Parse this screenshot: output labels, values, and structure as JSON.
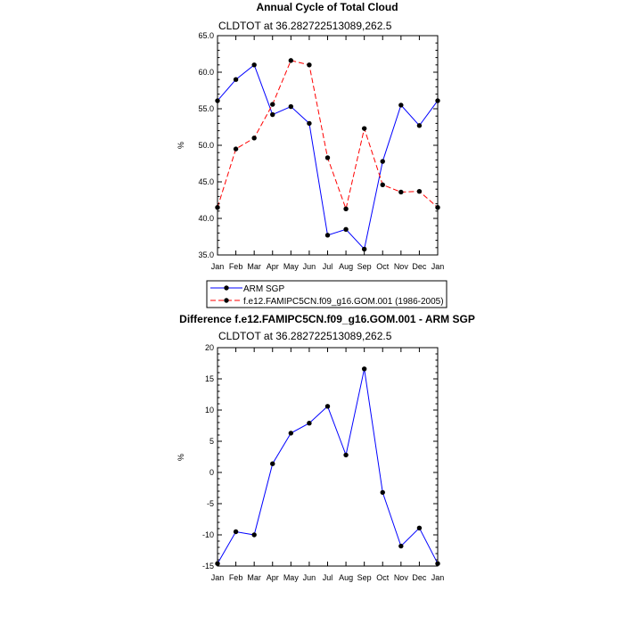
{
  "chart_data": [
    {
      "type": "line",
      "title": "Annual Cycle of Total Cloud",
      "subtitle": "CLDTOT at 36.282722513089,262.5",
      "xlabel": "",
      "ylabel": "%",
      "categories": [
        "Jan",
        "Feb",
        "Mar",
        "Apr",
        "May",
        "Jun",
        "Jul",
        "Aug",
        "Sep",
        "Oct",
        "Nov",
        "Dec",
        "Jan"
      ],
      "ylim": [
        35,
        65
      ],
      "yticks": [
        35,
        40,
        45,
        50,
        55,
        60,
        65
      ],
      "ytick_labels": [
        "35.0",
        "40.0",
        "45.0",
        "50.0",
        "55.0",
        "60.0",
        "65.0"
      ],
      "grid": false,
      "series": [
        {
          "name": "ARM SGP",
          "color": "#0000ff",
          "dash": "solid",
          "values": [
            56.1,
            59.0,
            61.0,
            54.2,
            55.3,
            53.0,
            37.7,
            38.5,
            35.8,
            47.8,
            55.5,
            52.7,
            56.1
          ]
        },
        {
          "name": "f.e12.FAMIPC5CN.f09_g16.GOM.001 (1986-2005)",
          "color": "#ff0000",
          "dash": "dashed",
          "values": [
            41.5,
            49.5,
            51.0,
            55.6,
            61.6,
            61.0,
            48.3,
            41.3,
            52.3,
            44.6,
            43.6,
            43.7,
            41.5
          ]
        }
      ],
      "legend": {
        "position": "below",
        "entries": [
          "ARM SGP",
          "f.e12.FAMIPC5CN.f09_g16.GOM.001 (1986-2005)"
        ]
      }
    },
    {
      "type": "line",
      "title": "Difference f.e12.FAMIPC5CN.f09_g16.GOM.001 - ARM SGP",
      "subtitle": "CLDTOT at 36.282722513089,262.5",
      "xlabel": "",
      "ylabel": "%",
      "categories": [
        "Jan",
        "Feb",
        "Mar",
        "Apr",
        "May",
        "Jun",
        "Jul",
        "Aug",
        "Sep",
        "Oct",
        "Nov",
        "Dec",
        "Jan"
      ],
      "ylim": [
        -15,
        20
      ],
      "yticks": [
        -15,
        -10,
        -5,
        0,
        5,
        10,
        15,
        20
      ],
      "ytick_labels": [
        "-15",
        "-10",
        "-5",
        "0",
        "5",
        "10",
        "15",
        "20"
      ],
      "grid": false,
      "series": [
        {
          "name": "Difference",
          "color": "#0000ff",
          "dash": "solid",
          "values": [
            -14.6,
            -9.5,
            -10.0,
            1.4,
            6.3,
            7.9,
            10.6,
            2.8,
            16.6,
            -3.2,
            -11.8,
            -8.9,
            -14.6
          ]
        }
      ]
    }
  ]
}
